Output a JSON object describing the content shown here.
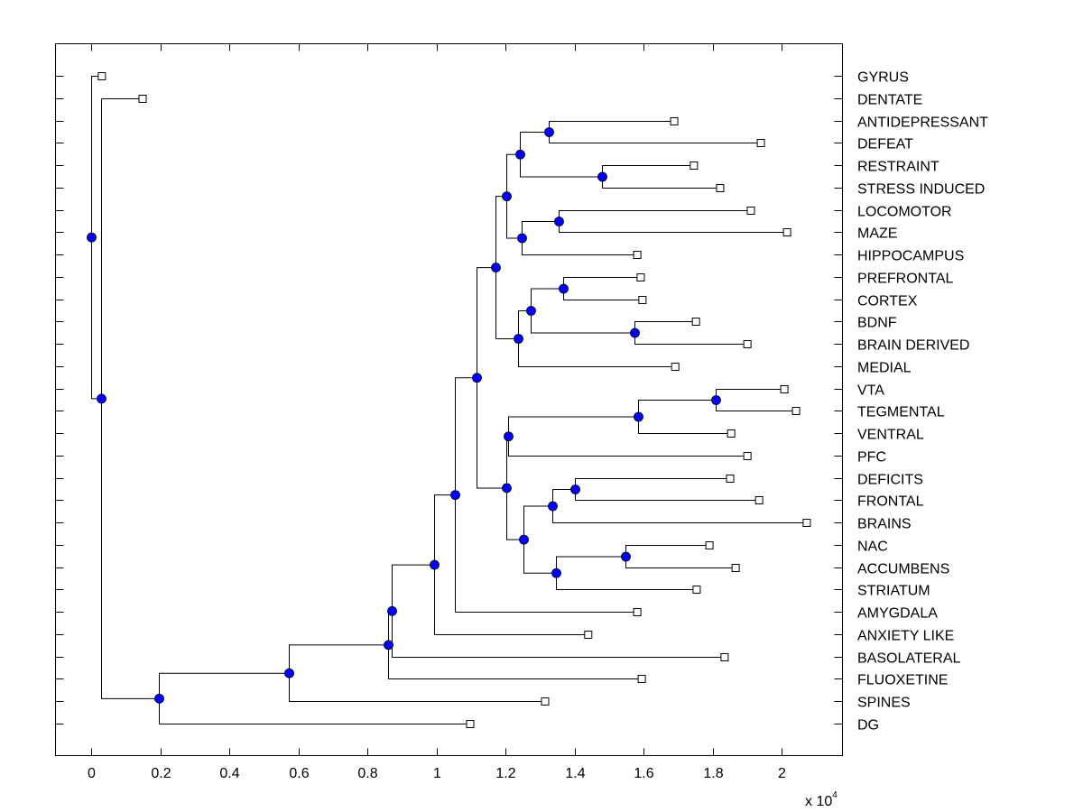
{
  "chart_data": {
    "type": "dendrogram",
    "title": "",
    "xlabel": "",
    "ylabel": "",
    "x_multiplier_label": "x 10",
    "x_multiplier_exponent": "4",
    "xlim": [
      -0.1,
      2.18
    ],
    "xticks": [
      0,
      0.2,
      0.4,
      0.6,
      0.8,
      1,
      1.2,
      1.4,
      1.6,
      1.8,
      2
    ],
    "xtick_labels": [
      "0",
      "0.2",
      "0.4",
      "0.6",
      "0.8",
      "1",
      "1.2",
      "1.4",
      "1.6",
      "1.8",
      "2"
    ],
    "grid": false,
    "colors": {
      "node_fill": "#0000ff",
      "line": "#000000",
      "leaf_fill": "#ffffff"
    },
    "leaves": [
      {
        "label": "GYRUS",
        "x": 0.031
      },
      {
        "label": "DENTATE",
        "x": 0.149
      },
      {
        "label": "ANTIDEPRESSANT",
        "x": 1.689
      },
      {
        "label": "DEFEAT",
        "x": 1.94
      },
      {
        "label": "RESTRAINT",
        "x": 1.746
      },
      {
        "label": "STRESS INDUCED",
        "x": 1.822
      },
      {
        "label": "LOCOMOTOR",
        "x": 1.911
      },
      {
        "label": "MAZE",
        "x": 2.016
      },
      {
        "label": "HIPPOCAMPUS",
        "x": 1.582
      },
      {
        "label": "PREFRONTAL",
        "x": 1.592
      },
      {
        "label": "CORTEX",
        "x": 1.597
      },
      {
        "label": "BDNF",
        "x": 1.752
      },
      {
        "label": "BRAIN DERIVED",
        "x": 1.901
      },
      {
        "label": "MEDIAL",
        "x": 1.692
      },
      {
        "label": "VTA",
        "x": 2.008
      },
      {
        "label": "TEGMENTAL",
        "x": 2.042
      },
      {
        "label": "VENTRAL",
        "x": 1.854
      },
      {
        "label": "PFC",
        "x": 1.901
      },
      {
        "label": "DEFICITS",
        "x": 1.851
      },
      {
        "label": "FRONTAL",
        "x": 1.935
      },
      {
        "label": "BRAINS",
        "x": 2.073
      },
      {
        "label": "NAC",
        "x": 1.791
      },
      {
        "label": "ACCUMBENS",
        "x": 1.867
      },
      {
        "label": "STRIATUM",
        "x": 1.754
      },
      {
        "label": "AMYGDALA",
        "x": 1.582
      },
      {
        "label": "ANXIETY LIKE",
        "x": 1.44
      },
      {
        "label": "BASOLATERAL",
        "x": 1.835
      },
      {
        "label": "FLUOXETINE",
        "x": 1.595
      },
      {
        "label": "SPINES",
        "x": 1.315
      },
      {
        "label": "DG",
        "x": 1.098
      }
    ],
    "nodes": [
      {
        "id": "root",
        "x": 0.0,
        "children": [
          "L0",
          "n_big"
        ]
      },
      {
        "id": "n_big",
        "x": 0.03,
        "children": [
          "L1",
          "n_dg"
        ]
      },
      {
        "id": "n_dg",
        "x": 0.196,
        "children": [
          "n_spines",
          "L29"
        ]
      },
      {
        "id": "n_spines",
        "x": 0.573,
        "children": [
          "n_fluox",
          "L28"
        ]
      },
      {
        "id": "n_fluox",
        "x": 0.86,
        "children": [
          "n_baso",
          "L27"
        ]
      },
      {
        "id": "n_baso",
        "x": 0.87,
        "children": [
          "n_anx",
          "L26"
        ]
      },
      {
        "id": "n_anx",
        "x": 0.993,
        "children": [
          "n_amyg",
          "L25"
        ]
      },
      {
        "id": "n_amyg",
        "x": 1.053,
        "children": [
          "n_main",
          "L24"
        ]
      },
      {
        "id": "n_main",
        "x": 1.116,
        "children": [
          "n_top",
          "n_bottom"
        ]
      },
      {
        "id": "n_top",
        "x": 1.17,
        "children": [
          "n_stress",
          "n_cortex"
        ]
      },
      {
        "id": "n_stress",
        "x": 1.203,
        "children": [
          "n_defeat",
          "n_hippo"
        ]
      },
      {
        "id": "n_defeat",
        "x": 1.242,
        "children": [
          "n_anti",
          "n_restr"
        ]
      },
      {
        "id": "n_anti",
        "x": 1.325,
        "children": [
          "L2",
          "L3"
        ]
      },
      {
        "id": "n_restr",
        "x": 1.479,
        "children": [
          "L4",
          "L5"
        ]
      },
      {
        "id": "n_hippo",
        "x": 1.248,
        "children": [
          "n_loco",
          "L8"
        ]
      },
      {
        "id": "n_loco",
        "x": 1.354,
        "children": [
          "L6",
          "L7"
        ]
      },
      {
        "id": "n_cortex",
        "x": 1.237,
        "children": [
          "n_pref",
          "L13"
        ]
      },
      {
        "id": "n_pref",
        "x": 1.272,
        "children": [
          "n_pc",
          "n_bdnf"
        ]
      },
      {
        "id": "n_pc",
        "x": 1.367,
        "children": [
          "L9",
          "L10"
        ]
      },
      {
        "id": "n_bdnf",
        "x": 1.573,
        "children": [
          "L11",
          "L12"
        ]
      },
      {
        "id": "n_bottom",
        "x": 1.202,
        "children": [
          "n_vta_pfc",
          "n_frontal_nac"
        ]
      },
      {
        "id": "n_vta_pfc",
        "x": 1.207,
        "children": [
          "n_vta_ventral",
          "L17"
        ]
      },
      {
        "id": "n_vta_ventral",
        "x": 1.584,
        "children": [
          "n_vta",
          "L16"
        ]
      },
      {
        "id": "n_vta",
        "x": 1.81,
        "children": [
          "L14",
          "L15"
        ]
      },
      {
        "id": "n_frontal_nac",
        "x": 1.253,
        "children": [
          "n_brains",
          "n_striat"
        ]
      },
      {
        "id": "n_brains",
        "x": 1.337,
        "children": [
          "n_def",
          "L20"
        ]
      },
      {
        "id": "n_def",
        "x": 1.402,
        "children": [
          "L18",
          "L19"
        ]
      },
      {
        "id": "n_striat",
        "x": 1.347,
        "children": [
          "n_nac",
          "L23"
        ]
      },
      {
        "id": "n_nac",
        "x": 1.548,
        "children": [
          "L21",
          "L22"
        ]
      }
    ]
  }
}
